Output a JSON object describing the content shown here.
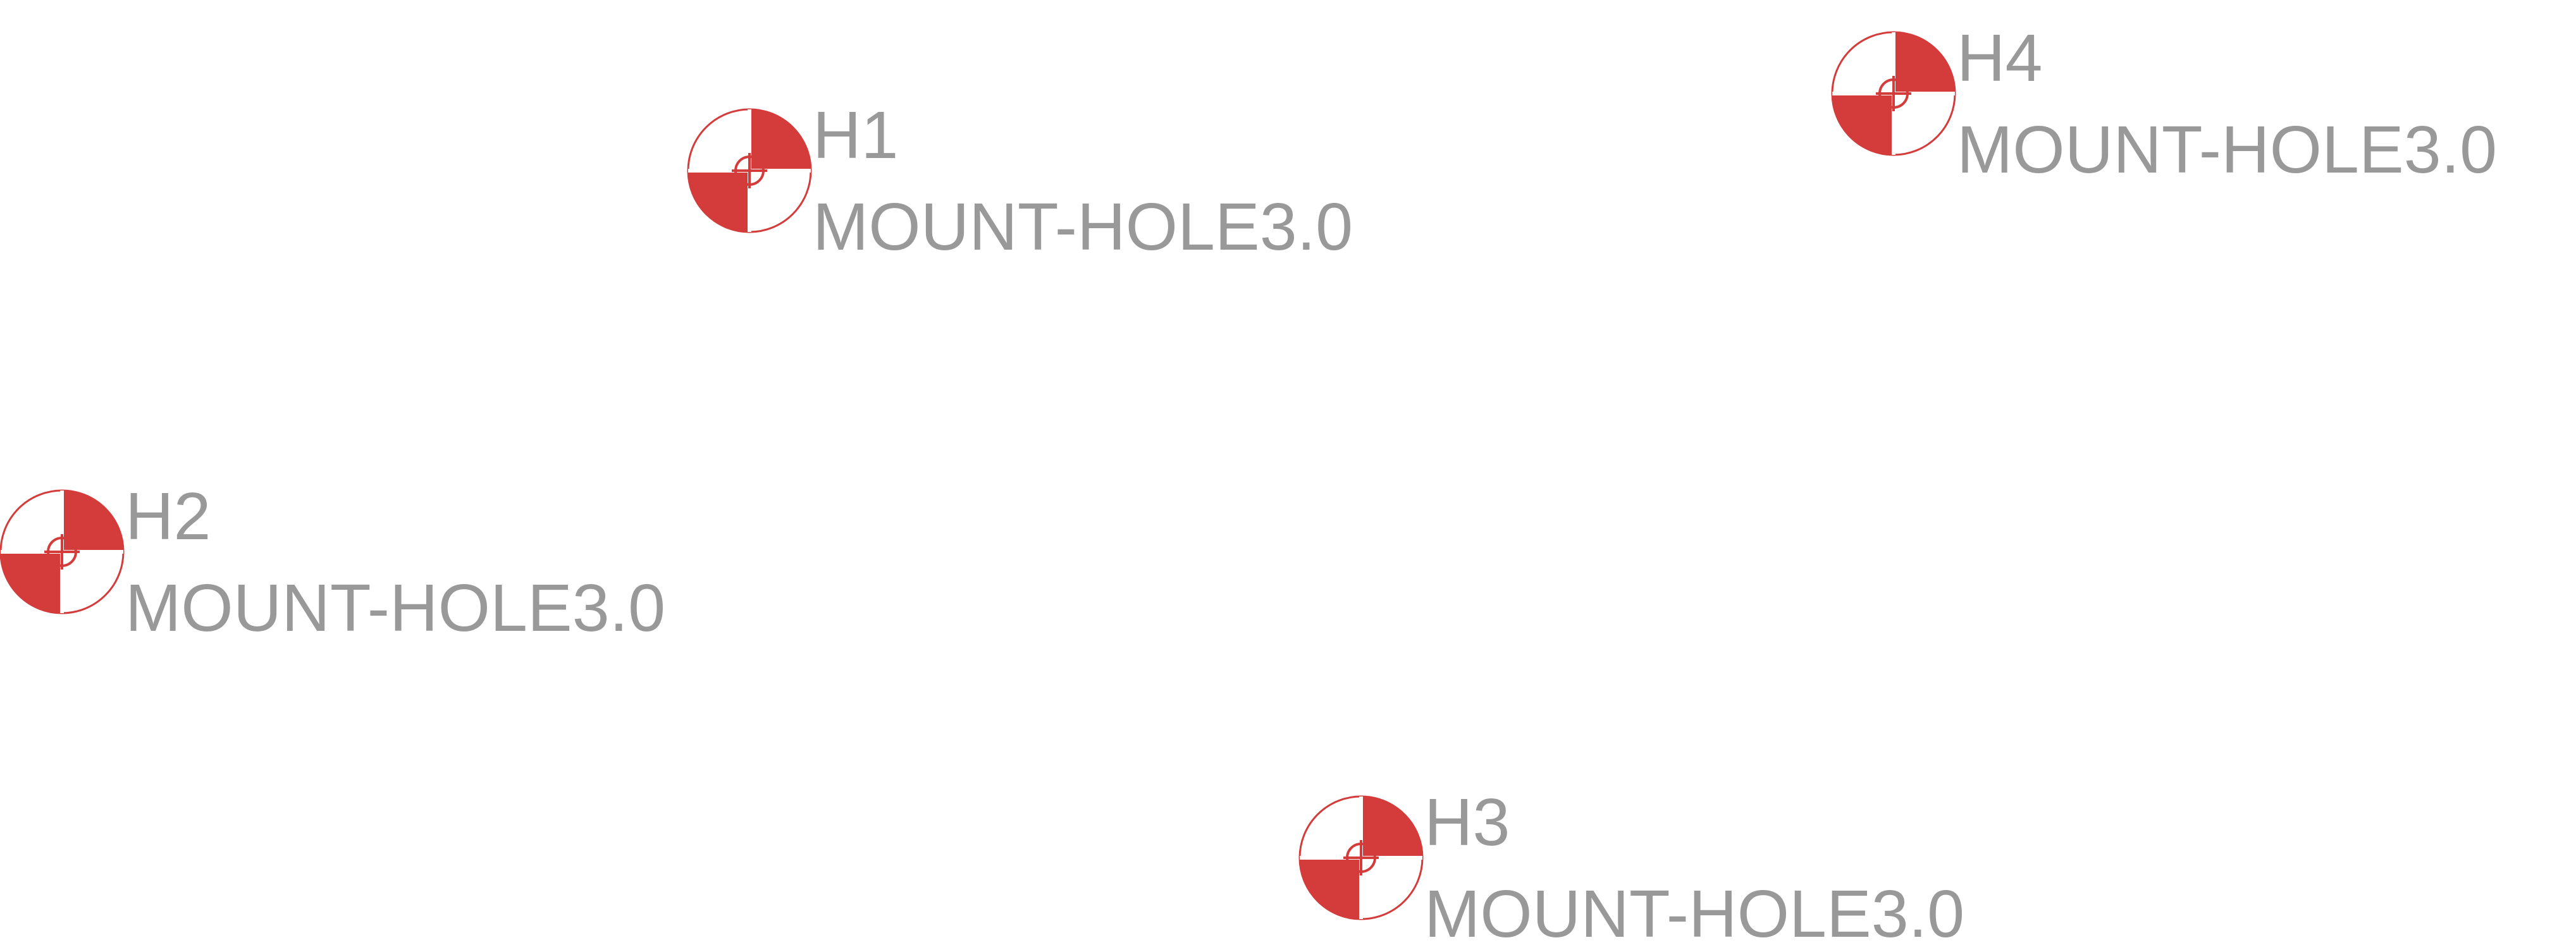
{
  "colors": {
    "symbol_fill": "#d43c3c",
    "symbol_outline": "#d43c3c",
    "background": "#ffffff",
    "label_text": "#999999"
  },
  "components": [
    {
      "reference": "H1",
      "value": "MOUNT-HOLE3.0"
    },
    {
      "reference": "H2",
      "value": "MOUNT-HOLE3.0"
    },
    {
      "reference": "H3",
      "value": "MOUNT-HOLE3.0"
    },
    {
      "reference": "H4",
      "value": "MOUNT-HOLE3.0"
    }
  ]
}
